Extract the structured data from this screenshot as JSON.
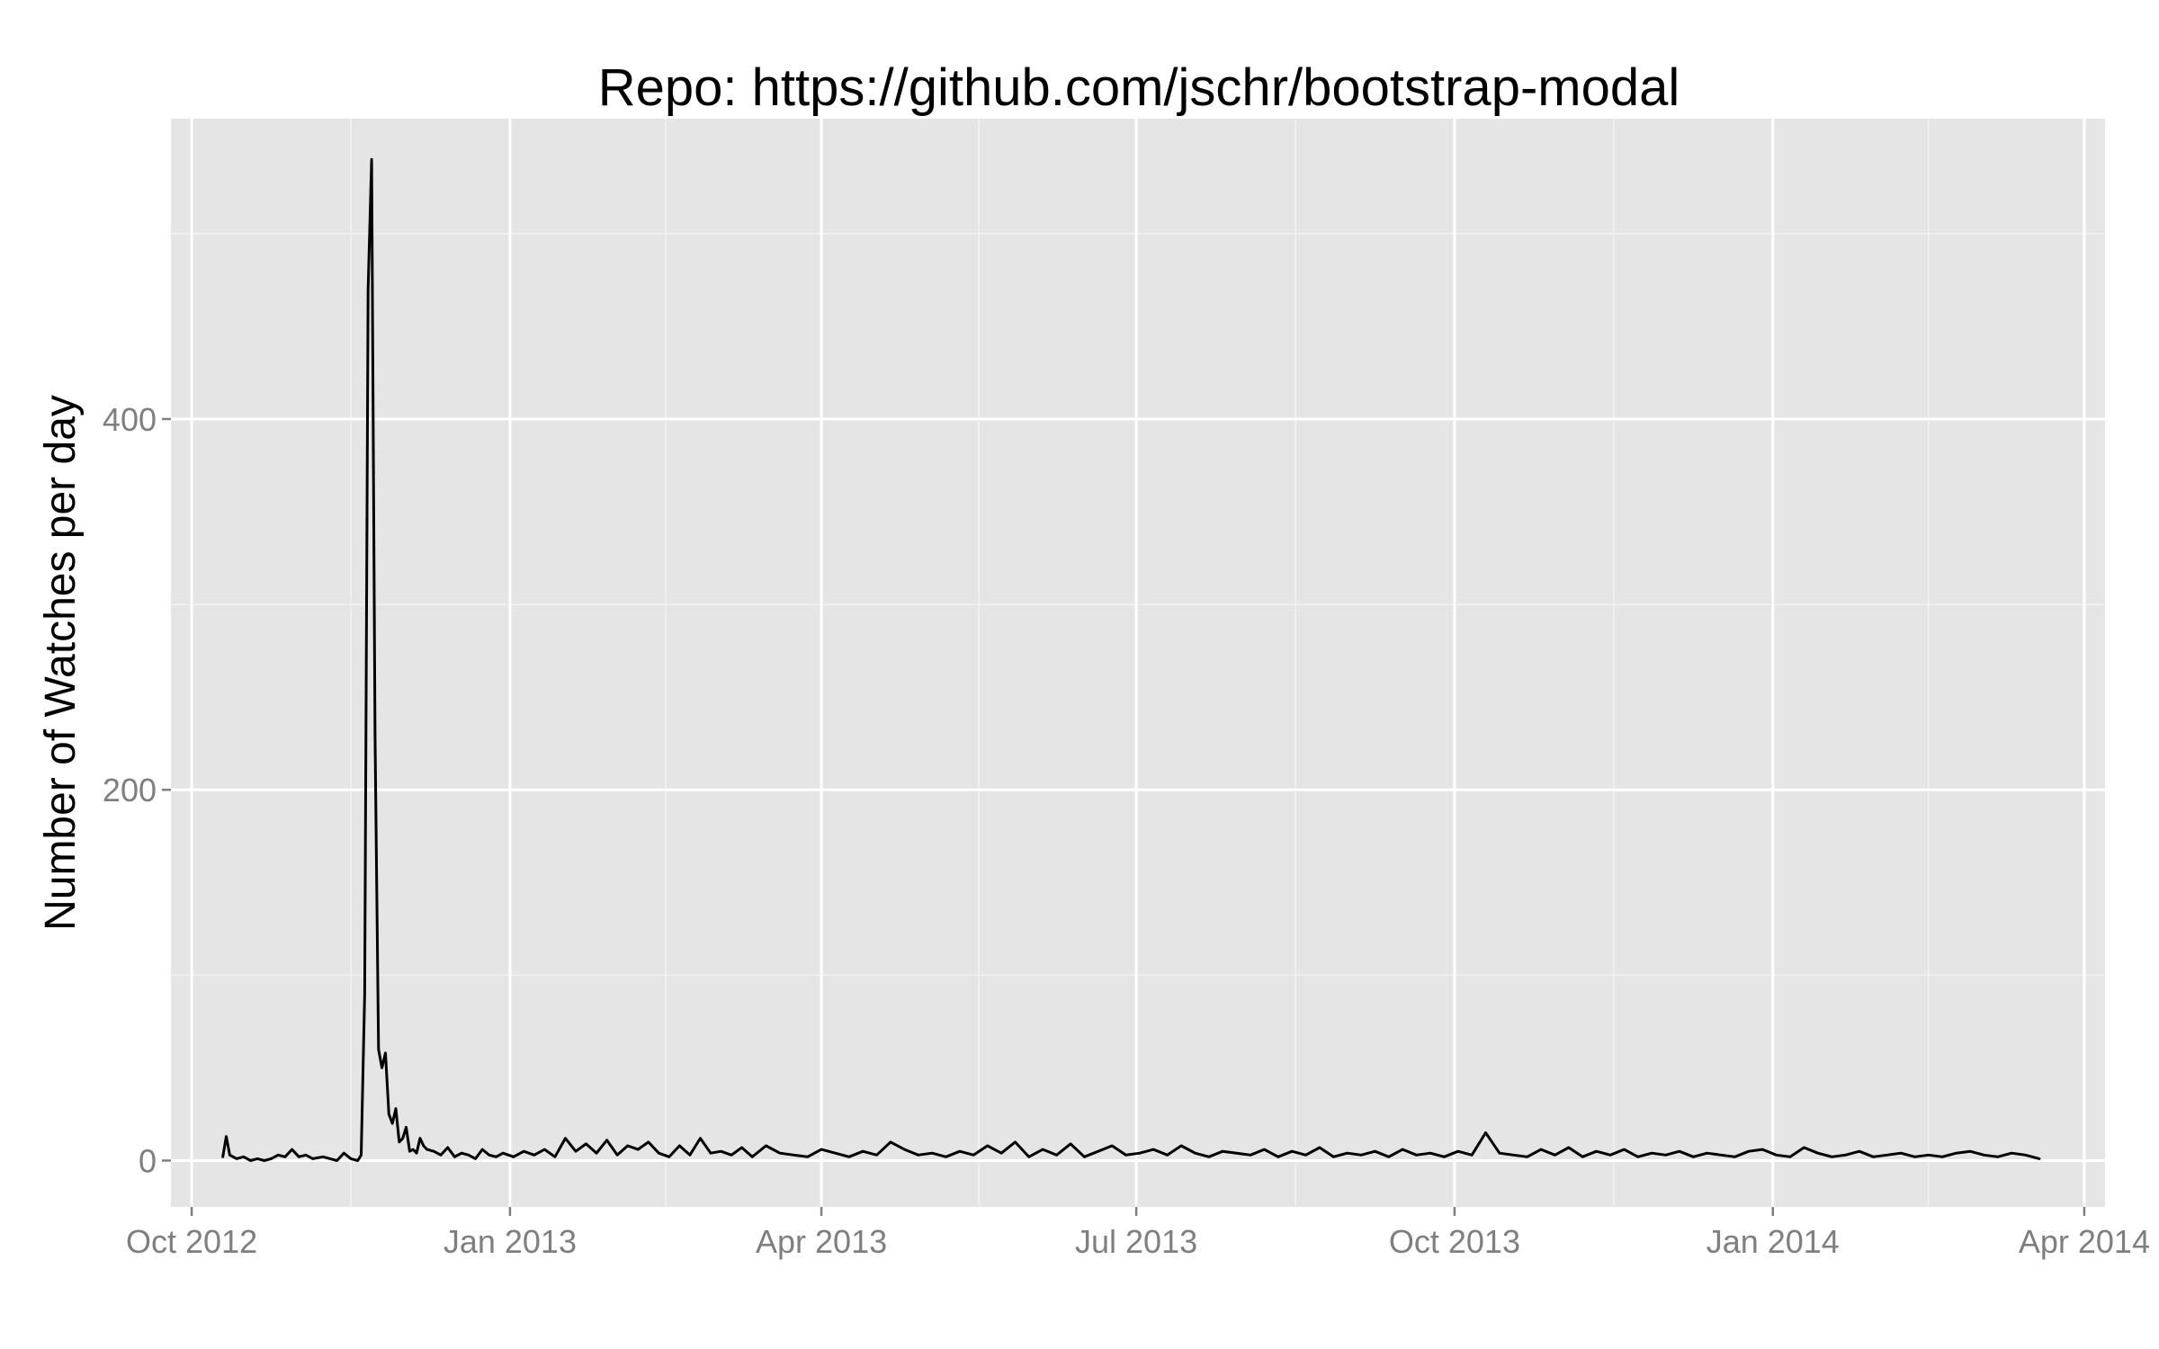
{
  "chart_data": {
    "type": "line",
    "title": "Repo: https://github.com/jschr/bootstrap-modal",
    "xlabel": "",
    "ylabel": "Number of Watches per day",
    "x_ticks": [
      "Oct 2012",
      "Jan 2013",
      "Apr 2013",
      "Jul 2013",
      "Oct 2013",
      "Jan 2014",
      "Apr 2014"
    ],
    "y_ticks": [
      "0",
      "200",
      "400"
    ],
    "xlim": [
      "2012-09-25",
      "2014-04-07"
    ],
    "ylim": [
      -25,
      562
    ],
    "grid": true,
    "background": "#e5e5e5",
    "grid_color": "#ffffff",
    "line_color": "#000000",
    "series": [
      {
        "name": "",
        "x": [
          "2012-10-10",
          "2012-10-11",
          "2012-10-12",
          "2012-10-14",
          "2012-10-16",
          "2012-10-18",
          "2012-10-20",
          "2012-10-22",
          "2012-10-24",
          "2012-10-26",
          "2012-10-28",
          "2012-10-30",
          "2012-11-01",
          "2012-11-03",
          "2012-11-05",
          "2012-11-08",
          "2012-11-10",
          "2012-11-12",
          "2012-11-14",
          "2012-11-16",
          "2012-11-18",
          "2012-11-19",
          "2012-11-20",
          "2012-11-21",
          "2012-11-22",
          "2012-11-23",
          "2012-11-24",
          "2012-11-25",
          "2012-11-26",
          "2012-11-27",
          "2012-11-28",
          "2012-11-29",
          "2012-11-30",
          "2012-12-01",
          "2012-12-02",
          "2012-12-03",
          "2012-12-04",
          "2012-12-05",
          "2012-12-06",
          "2012-12-07",
          "2012-12-08",
          "2012-12-10",
          "2012-12-12",
          "2012-12-14",
          "2012-12-16",
          "2012-12-18",
          "2012-12-20",
          "2012-12-22",
          "2012-12-24",
          "2012-12-26",
          "2012-12-28",
          "2012-12-30",
          "2013-01-02",
          "2013-01-05",
          "2013-01-08",
          "2013-01-11",
          "2013-01-14",
          "2013-01-17",
          "2013-01-20",
          "2013-01-23",
          "2013-01-26",
          "2013-01-29",
          "2013-02-01",
          "2013-02-04",
          "2013-02-07",
          "2013-02-10",
          "2013-02-13",
          "2013-02-16",
          "2013-02-19",
          "2013-02-22",
          "2013-02-25",
          "2013-02-28",
          "2013-03-03",
          "2013-03-06",
          "2013-03-09",
          "2013-03-12",
          "2013-03-16",
          "2013-03-20",
          "2013-03-24",
          "2013-03-28",
          "2013-04-01",
          "2013-04-05",
          "2013-04-09",
          "2013-04-13",
          "2013-04-17",
          "2013-04-21",
          "2013-04-25",
          "2013-04-29",
          "2013-05-03",
          "2013-05-07",
          "2013-05-11",
          "2013-05-15",
          "2013-05-19",
          "2013-05-23",
          "2013-05-27",
          "2013-05-31",
          "2013-06-04",
          "2013-06-08",
          "2013-06-12",
          "2013-06-16",
          "2013-06-20",
          "2013-06-24",
          "2013-06-28",
          "2013-07-02",
          "2013-07-06",
          "2013-07-10",
          "2013-07-14",
          "2013-07-18",
          "2013-07-22",
          "2013-07-26",
          "2013-07-30",
          "2013-08-03",
          "2013-08-07",
          "2013-08-11",
          "2013-08-15",
          "2013-08-19",
          "2013-08-23",
          "2013-08-27",
          "2013-08-31",
          "2013-09-04",
          "2013-09-08",
          "2013-09-12",
          "2013-09-16",
          "2013-09-20",
          "2013-09-24",
          "2013-09-28",
          "2013-10-02",
          "2013-10-06",
          "2013-10-10",
          "2013-10-14",
          "2013-10-18",
          "2013-10-22",
          "2013-10-26",
          "2013-10-30",
          "2013-11-03",
          "2013-11-07",
          "2013-11-11",
          "2013-11-15",
          "2013-11-19",
          "2013-11-23",
          "2013-11-27",
          "2013-12-01",
          "2013-12-05",
          "2013-12-09",
          "2013-12-13",
          "2013-12-17",
          "2013-12-21",
          "2013-12-25",
          "2013-12-29",
          "2014-01-02",
          "2014-01-06",
          "2014-01-10",
          "2014-01-14",
          "2014-01-18",
          "2014-01-22",
          "2014-01-26",
          "2014-01-30",
          "2014-02-03",
          "2014-02-07",
          "2014-02-11",
          "2014-02-15",
          "2014-02-19",
          "2014-02-23",
          "2014-02-27",
          "2014-03-03",
          "2014-03-07",
          "2014-03-11",
          "2014-03-15",
          "2014-03-19"
        ],
        "values": [
          2,
          13,
          3,
          1,
          2,
          0,
          1,
          0,
          1,
          3,
          2,
          6,
          2,
          3,
          1,
          2,
          1,
          0,
          4,
          1,
          0,
          3,
          90,
          470,
          540,
          230,
          60,
          50,
          58,
          25,
          20,
          28,
          10,
          12,
          18,
          5,
          6,
          4,
          12,
          8,
          6,
          5,
          3,
          7,
          2,
          4,
          3,
          1,
          6,
          3,
          2,
          4,
          2,
          5,
          3,
          6,
          2,
          12,
          5,
          9,
          4,
          11,
          3,
          8,
          6,
          10,
          4,
          2,
          8,
          3,
          12,
          4,
          5,
          3,
          7,
          2,
          8,
          4,
          3,
          2,
          6,
          4,
          2,
          5,
          3,
          10,
          6,
          3,
          4,
          2,
          5,
          3,
          8,
          4,
          10,
          2,
          6,
          3,
          9,
          2,
          5,
          8,
          3,
          4,
          6,
          3,
          8,
          4,
          2,
          5,
          4,
          3,
          6,
          2,
          5,
          3,
          7,
          2,
          4,
          3,
          5,
          2,
          6,
          3,
          4,
          2,
          5,
          3,
          15,
          4,
          3,
          2,
          6,
          3,
          7,
          2,
          5,
          3,
          6,
          2,
          4,
          3,
          5,
          2,
          4,
          3,
          2,
          5,
          6,
          3,
          2,
          7,
          4,
          2,
          3,
          5,
          2,
          3,
          4,
          2,
          3,
          2,
          4,
          5,
          3,
          2,
          4,
          3,
          1
        ]
      }
    ]
  }
}
